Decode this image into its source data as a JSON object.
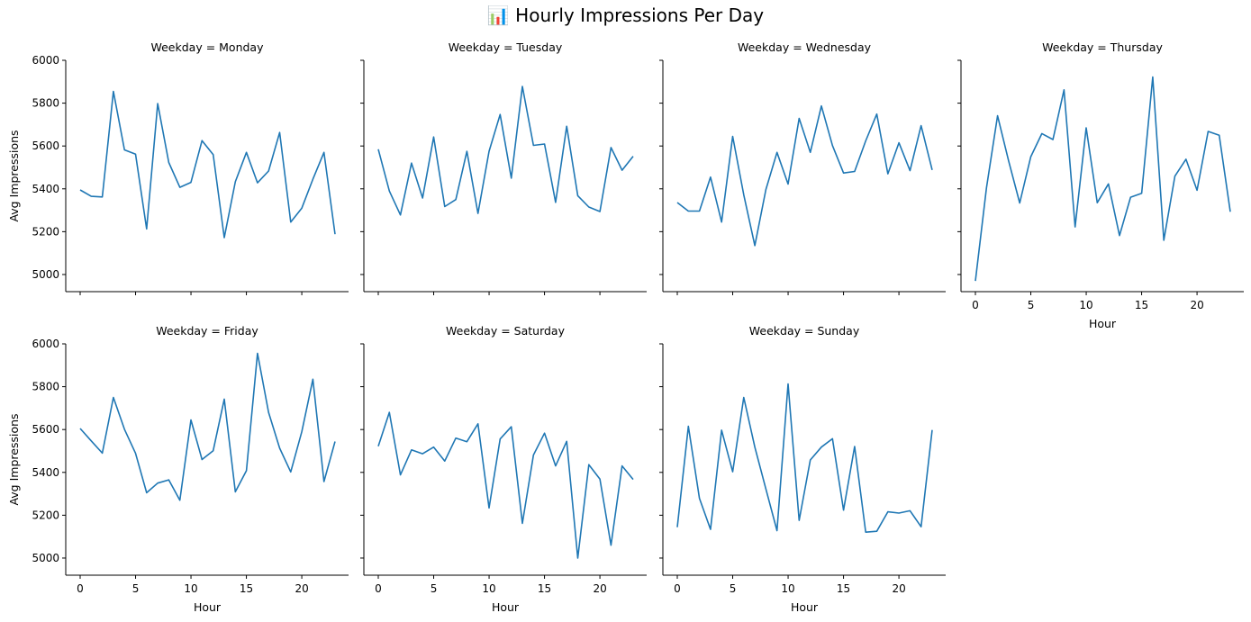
{
  "title": "📊 Hourly Impressions Per Day",
  "chart_data": {
    "type": "line",
    "layout": "facet-grid",
    "line_color": "#1f77b4",
    "grid": false,
    "xlabel": "Hour",
    "ylabel": "Avg Impressions",
    "xlim": [
      0,
      23
    ],
    "ylim": [
      4920,
      6000
    ],
    "xticks": [
      0,
      5,
      10,
      15,
      20
    ],
    "yticks": [
      5000,
      5200,
      5400,
      5600,
      5800,
      6000
    ],
    "x": [
      0,
      1,
      2,
      3,
      4,
      5,
      6,
      7,
      8,
      9,
      10,
      11,
      12,
      13,
      14,
      15,
      16,
      17,
      18,
      19,
      20,
      21,
      22,
      23
    ],
    "series": [
      {
        "name": "Weekday = Monday",
        "values": [
          5395,
          5365,
          5362,
          5855,
          5582,
          5562,
          5213,
          5798,
          5523,
          5407,
          5430,
          5625,
          5560,
          5172,
          5433,
          5570,
          5428,
          5483,
          5663,
          5245,
          5310,
          5445,
          5570,
          5188
        ]
      },
      {
        "name": "Weekday = Tuesday",
        "values": [
          5585,
          5390,
          5278,
          5520,
          5357,
          5642,
          5317,
          5350,
          5575,
          5285,
          5575,
          5747,
          5450,
          5878,
          5603,
          5609,
          5337,
          5692,
          5368,
          5315,
          5294,
          5593,
          5487,
          5552
        ]
      },
      {
        "name": "Weekday = Wednesday",
        "values": [
          5336,
          5296,
          5296,
          5455,
          5245,
          5645,
          5372,
          5135,
          5397,
          5570,
          5422,
          5729,
          5570,
          5787,
          5602,
          5474,
          5481,
          5624,
          5749,
          5470,
          5615,
          5485,
          5695,
          5488
        ]
      },
      {
        "name": "Weekday = Thursday",
        "values": [
          4970,
          5405,
          5741,
          5530,
          5334,
          5550,
          5658,
          5630,
          5862,
          5222,
          5685,
          5335,
          5423,
          5182,
          5361,
          5379,
          5922,
          5160,
          5459,
          5538,
          5393,
          5668,
          5650,
          5293
        ]
      },
      {
        "name": "Weekday = Friday",
        "values": [
          5605,
          5547,
          5490,
          5750,
          5601,
          5489,
          5305,
          5350,
          5365,
          5270,
          5645,
          5460,
          5501,
          5742,
          5309,
          5408,
          5956,
          5680,
          5513,
          5402,
          5590,
          5835,
          5357,
          5544
        ]
      },
      {
        "name": "Weekday = Saturday",
        "values": [
          5522,
          5680,
          5388,
          5505,
          5487,
          5518,
          5453,
          5560,
          5543,
          5627,
          5234,
          5556,
          5613,
          5162,
          5481,
          5583,
          5430,
          5545,
          5000,
          5436,
          5369,
          5060,
          5430,
          5367
        ]
      },
      {
        "name": "Weekday = Sunday",
        "values": [
          5144,
          5615,
          5279,
          5134,
          5597,
          5403,
          5750,
          5518,
          5322,
          5128,
          5813,
          5176,
          5458,
          5518,
          5557,
          5224,
          5521,
          5121,
          5125,
          5216,
          5210,
          5221,
          5146,
          5598
        ]
      }
    ]
  }
}
